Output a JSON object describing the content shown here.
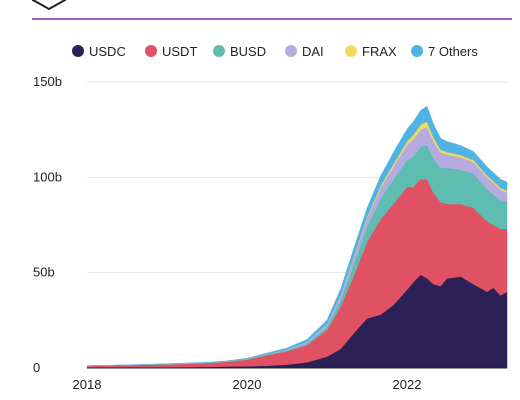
{
  "chart_data": {
    "type": "area",
    "stacked": true,
    "title": "",
    "xlabel": "",
    "ylabel": "",
    "ylim": [
      0,
      150
    ],
    "xlim": [
      2018.0,
      2023.25
    ],
    "grid": true,
    "legend_position": "top",
    "x_ticks": [
      {
        "value": 2018,
        "label": "2018"
      },
      {
        "value": 2020,
        "label": "2020"
      },
      {
        "value": 2022,
        "label": "2022"
      }
    ],
    "y_ticks": [
      {
        "value": 0,
        "label": "0"
      },
      {
        "value": 50,
        "label": "50b"
      },
      {
        "value": 100,
        "label": "100b"
      },
      {
        "value": 150,
        "label": "150b"
      }
    ],
    "x": [
      2018.0,
      2018.5,
      2019.0,
      2019.5,
      2019.75,
      2020.0,
      2020.25,
      2020.5,
      2020.75,
      2021.0,
      2021.17,
      2021.33,
      2021.5,
      2021.67,
      2021.83,
      2022.0,
      2022.08,
      2022.17,
      2022.25,
      2022.33,
      2022.42,
      2022.5,
      2022.67,
      2022.83,
      2023.0,
      2023.08,
      2023.17,
      2023.25
    ],
    "series": [
      {
        "name": "USDC",
        "color": "#2c2156",
        "values": [
          0.1,
          0.3,
          0.4,
          0.6,
          0.8,
          0.9,
          1.2,
          1.8,
          3,
          6,
          10,
          18,
          26,
          28,
          33,
          41,
          45,
          49,
          47,
          44,
          43,
          47,
          48,
          44,
          40,
          42,
          38,
          40
        ]
      },
      {
        "name": "USDT",
        "color": "#e05263",
        "values": [
          1.0,
          1.2,
          1.5,
          2.0,
          2.5,
          3.5,
          5.5,
          7,
          9,
          14,
          22,
          30,
          40,
          50,
          53,
          54,
          50,
          50,
          52,
          48,
          44,
          39,
          38,
          40,
          37,
          33,
          35,
          33
        ]
      },
      {
        "name": "BUSD",
        "color": "#5fbcb0",
        "values": [
          0,
          0,
          0.1,
          0.1,
          0.1,
          0.2,
          0.3,
          0.5,
          0.8,
          1.5,
          3.5,
          6,
          8,
          11,
          13,
          14,
          16,
          17,
          18,
          18,
          18,
          19,
          18,
          18,
          17,
          16,
          15,
          14
        ]
      },
      {
        "name": "DAI",
        "color": "#b6abe0",
        "values": [
          0.05,
          0.08,
          0.1,
          0.1,
          0.1,
          0.15,
          0.2,
          0.4,
          1,
          1.5,
          2.5,
          3.5,
          4.5,
          5.5,
          6.5,
          8,
          9,
          9,
          9.5,
          9,
          8,
          7,
          6.5,
          6,
          6,
          6,
          5.5,
          5
        ]
      },
      {
        "name": "FRAX",
        "color": "#f5d85c",
        "values": [
          0,
          0,
          0,
          0,
          0,
          0,
          0,
          0,
          0,
          0.1,
          0.3,
          0.5,
          0.8,
          1.2,
          1.5,
          1.8,
          2.3,
          2.6,
          2.8,
          2.0,
          1.5,
          1.3,
          1.2,
          1.1,
          1.0,
          1.0,
          1.0,
          1.0
        ]
      },
      {
        "name": "7 Others",
        "color": "#4fb3e3",
        "values": [
          0.1,
          0.1,
          0.15,
          0.2,
          0.25,
          0.4,
          0.6,
          0.8,
          1.2,
          2,
          3,
          4,
          4.5,
          5,
          6,
          6.5,
          7,
          7.5,
          8,
          7,
          6,
          5.5,
          5,
          4.5,
          4.5,
          4.5,
          4.5,
          4.5
        ]
      }
    ]
  }
}
